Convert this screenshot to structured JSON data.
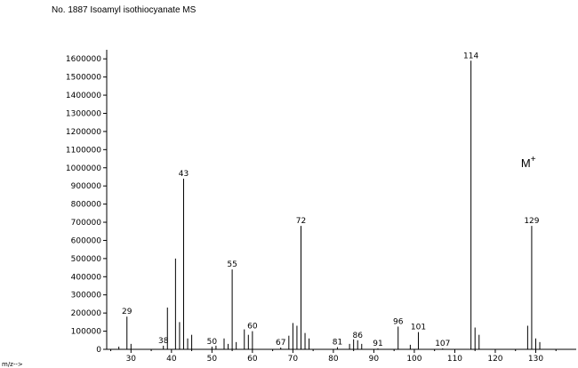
{
  "title": "No. 1887 Isoamyl isothiocyanate MS",
  "chart_data": {
    "type": "bar",
    "title": "No. 1887 Isoamyl isothiocyanate MS",
    "xlabel": "m/z-->",
    "ylabel": "",
    "xlim": [
      24,
      140
    ],
    "ylim": [
      0,
      1650000
    ],
    "grid": false,
    "x_ticks": [
      30,
      40,
      50,
      60,
      70,
      80,
      90,
      100,
      110,
      120,
      130
    ],
    "y_ticks": [
      0,
      100000,
      200000,
      300000,
      400000,
      500000,
      600000,
      700000,
      800000,
      900000,
      1000000,
      1100000,
      1200000,
      1300000,
      1400000,
      1500000,
      1600000
    ],
    "x_tick_labels": [
      "30",
      "40",
      "50",
      "60",
      "70",
      "80",
      "90",
      "100",
      "110",
      "120",
      "130"
    ],
    "y_tick_labels": [
      "0",
      "100000",
      "200000",
      "300000",
      "400000",
      "500000",
      "600000",
      "700000",
      "800000",
      "900000",
      "1000000",
      "1100000",
      "1200000",
      "1300000",
      "1400000",
      "1500000",
      "1600000"
    ],
    "peaks": [
      {
        "mz": 27,
        "intensity": 15000
      },
      {
        "mz": 29,
        "intensity": 180000,
        "label": "29"
      },
      {
        "mz": 30,
        "intensity": 30000
      },
      {
        "mz": 38,
        "intensity": 20000,
        "label": "38"
      },
      {
        "mz": 39,
        "intensity": 230000
      },
      {
        "mz": 41,
        "intensity": 500000
      },
      {
        "mz": 42,
        "intensity": 150000
      },
      {
        "mz": 43,
        "intensity": 940000,
        "label": "43"
      },
      {
        "mz": 44,
        "intensity": 60000
      },
      {
        "mz": 45,
        "intensity": 80000
      },
      {
        "mz": 50,
        "intensity": 15000,
        "label": "50"
      },
      {
        "mz": 51,
        "intensity": 20000
      },
      {
        "mz": 53,
        "intensity": 60000
      },
      {
        "mz": 54,
        "intensity": 30000
      },
      {
        "mz": 55,
        "intensity": 440000,
        "label": "55"
      },
      {
        "mz": 56,
        "intensity": 40000
      },
      {
        "mz": 58,
        "intensity": 110000
      },
      {
        "mz": 59,
        "intensity": 80000
      },
      {
        "mz": 60,
        "intensity": 100000,
        "label": "60"
      },
      {
        "mz": 67,
        "intensity": 10000,
        "label": "67"
      },
      {
        "mz": 69,
        "intensity": 75000
      },
      {
        "mz": 70,
        "intensity": 145000
      },
      {
        "mz": 71,
        "intensity": 130000
      },
      {
        "mz": 72,
        "intensity": 680000,
        "label": "72"
      },
      {
        "mz": 73,
        "intensity": 90000
      },
      {
        "mz": 74,
        "intensity": 60000
      },
      {
        "mz": 81,
        "intensity": 12000,
        "label": "81"
      },
      {
        "mz": 84,
        "intensity": 30000
      },
      {
        "mz": 85,
        "intensity": 55000
      },
      {
        "mz": 86,
        "intensity": 50000,
        "label": "86"
      },
      {
        "mz": 87,
        "intensity": 30000
      },
      {
        "mz": 91,
        "intensity": 5000,
        "label": "91"
      },
      {
        "mz": 96,
        "intensity": 125000,
        "label": "96"
      },
      {
        "mz": 99,
        "intensity": 25000
      },
      {
        "mz": 101,
        "intensity": 95000,
        "label": "101"
      },
      {
        "mz": 107,
        "intensity": 5000,
        "label": "107"
      },
      {
        "mz": 114,
        "intensity": 1590000,
        "label": "114"
      },
      {
        "mz": 115,
        "intensity": 120000
      },
      {
        "mz": 116,
        "intensity": 80000
      },
      {
        "mz": 128,
        "intensity": 130000
      },
      {
        "mz": 129,
        "intensity": 680000,
        "label": "129"
      },
      {
        "mz": 130,
        "intensity": 60000
      },
      {
        "mz": 131,
        "intensity": 40000
      }
    ],
    "annotations": [
      {
        "text": "M",
        "superscript": "+",
        "near_mz": 129
      }
    ]
  }
}
